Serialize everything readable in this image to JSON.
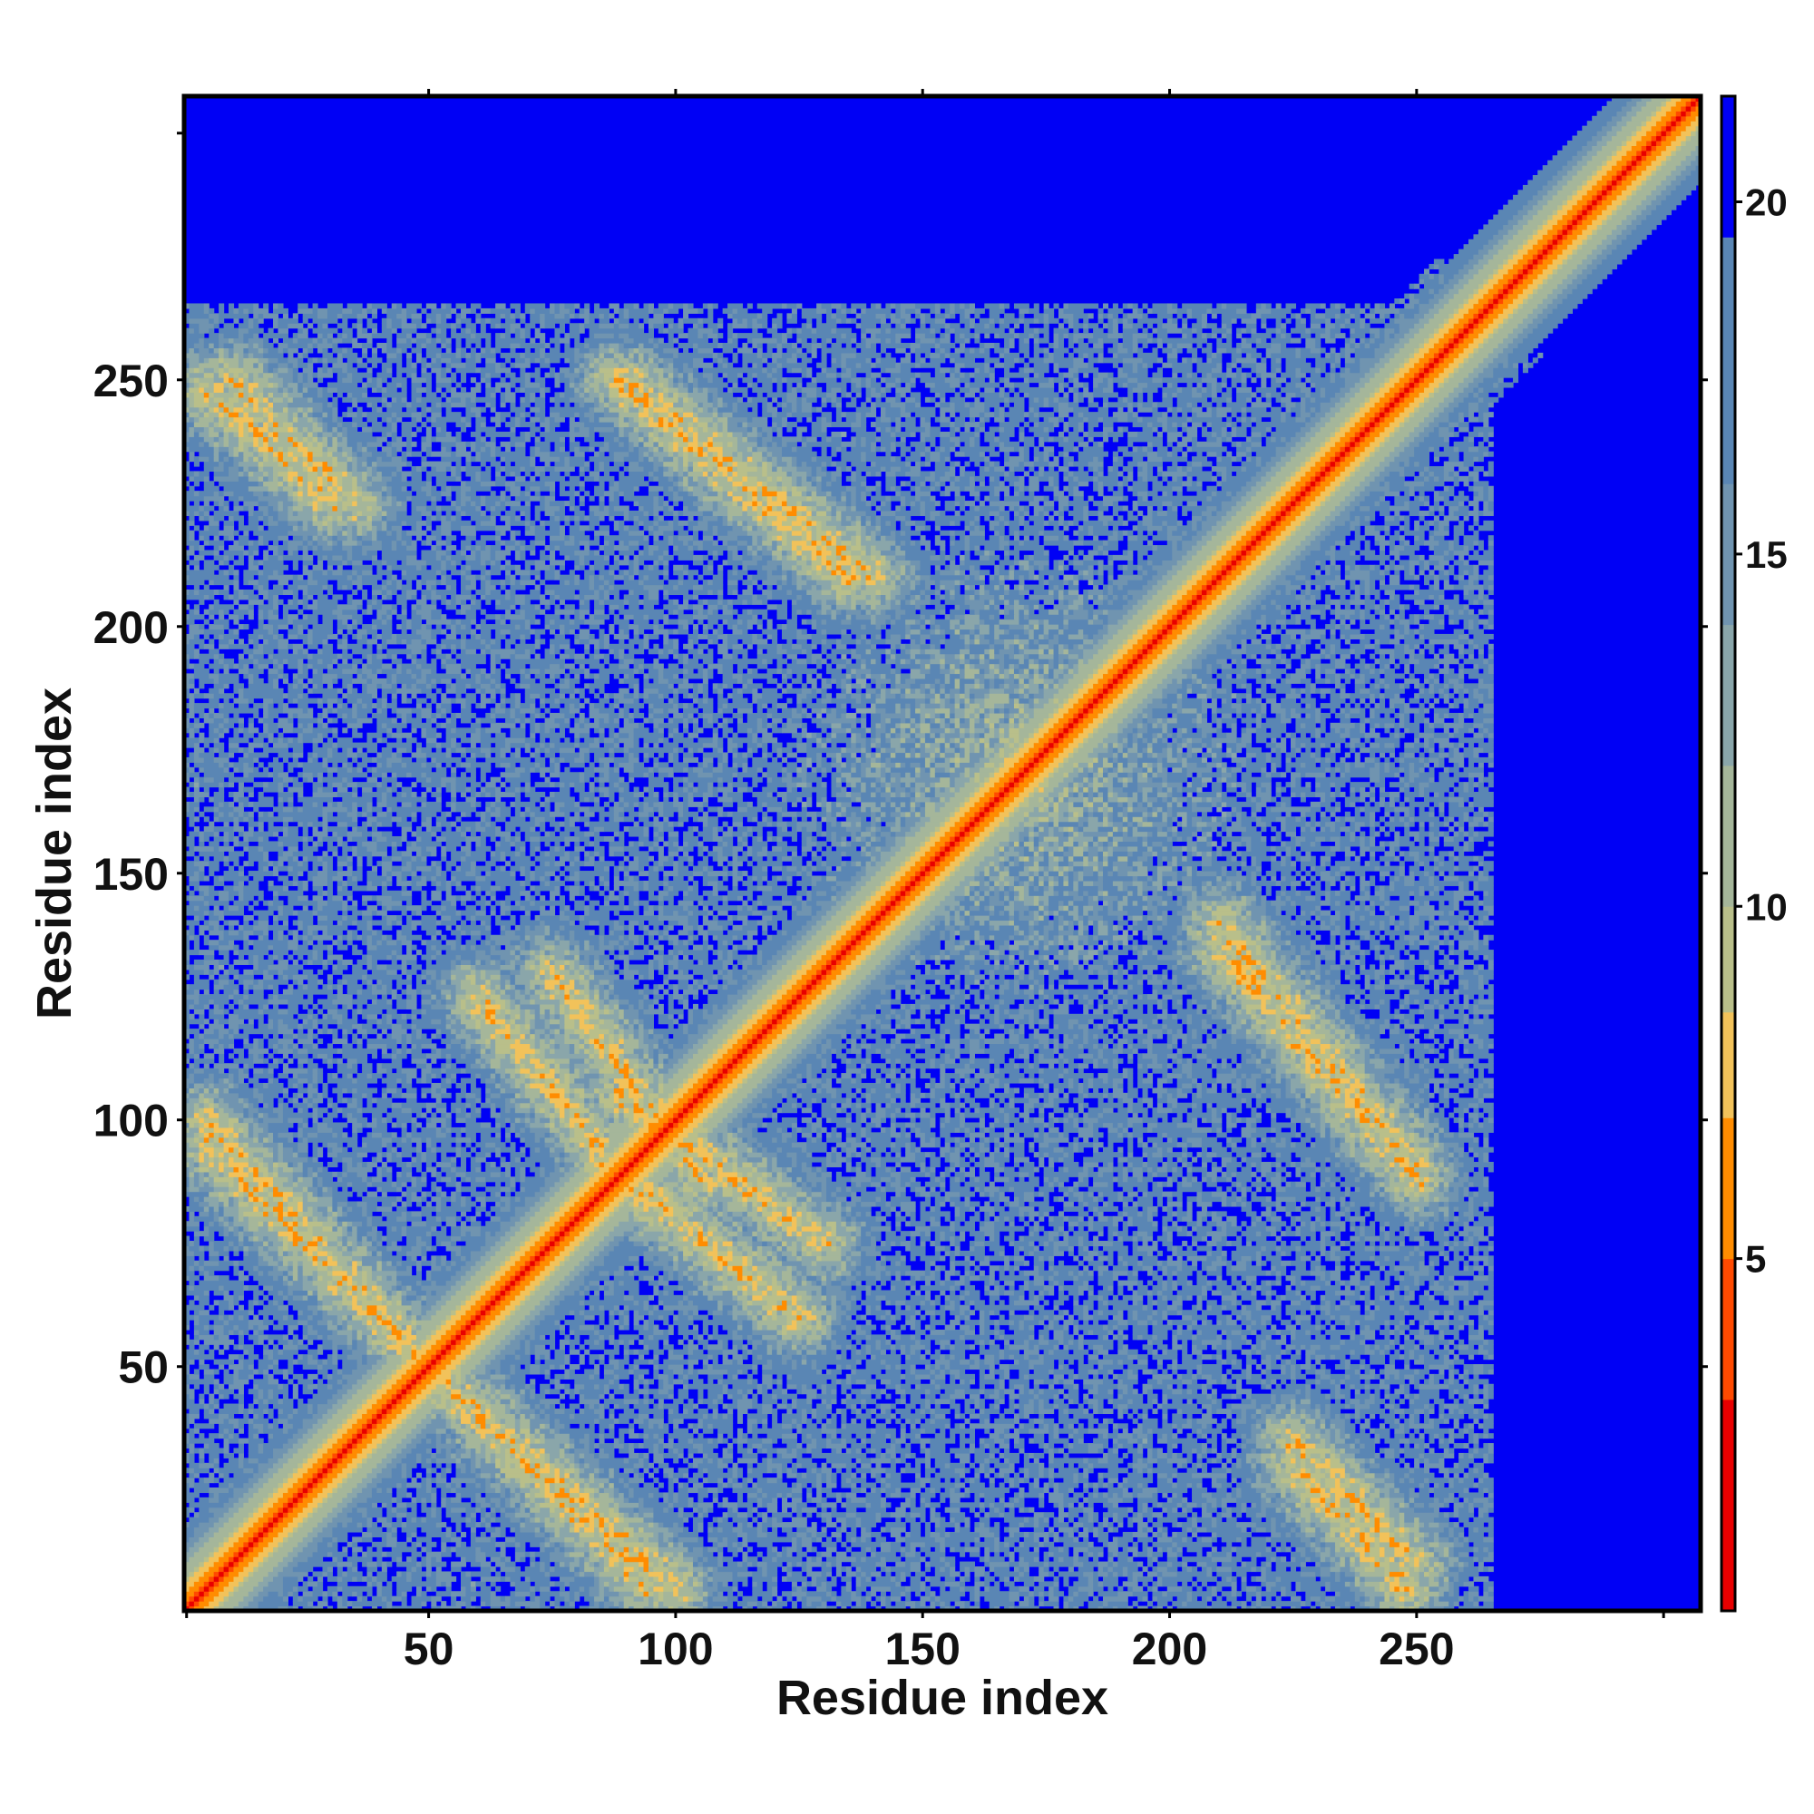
{
  "chart_data": {
    "type": "heatmap",
    "title": "",
    "xlabel": "Residue index",
    "ylabel": "Residue index",
    "x_range": [
      1,
      307
    ],
    "y_range": [
      1,
      307
    ],
    "xticks": [
      50,
      100,
      150,
      200,
      250
    ],
    "yticks": [
      50,
      100,
      150,
      200,
      250
    ],
    "xtick_labels": [
      "50",
      "100",
      "150",
      "200",
      "250"
    ],
    "ytick_labels": [
      "50",
      "100",
      "150",
      "200",
      "250"
    ],
    "colorbar": {
      "range": [
        0,
        21.5
      ],
      "ticks": [
        5,
        10,
        15,
        20
      ],
      "tick_labels": [
        "5",
        "10",
        "15",
        "20"
      ],
      "placement": "right"
    },
    "color_scale": [
      {
        "max": 3,
        "color": "#e80000"
      },
      {
        "max": 5,
        "color": "#ff4a00"
      },
      {
        "max": 7,
        "color": "#ff8c00"
      },
      {
        "max": 8.5,
        "color": "#f2c25a"
      },
      {
        "max": 10,
        "color": "#b9bf8a"
      },
      {
        "max": 12,
        "color": "#a5b69a"
      },
      {
        "max": 14,
        "color": "#8aa6aa"
      },
      {
        "max": 16,
        "color": "#7094b0"
      },
      {
        "max": 19.5,
        "color": "#5a86b4"
      },
      {
        "max": 99,
        "color": "#0000f5"
      }
    ],
    "matrix_kind": "symmetric residue-residue distance map",
    "features": {
      "diagonal": "continuous band of low distances along the full main diagonal",
      "anti_parallel_contacts": [
        {
          "x": [
            5,
            50
          ],
          "y": [
            95,
            50
          ]
        },
        {
          "x": [
            55,
            100
          ],
          "y": [
            45,
            5
          ]
        },
        {
          "x": [
            60,
            92
          ],
          "y": [
            125,
            85
          ]
        },
        {
          "x": [
            88,
            130
          ],
          "y": [
            105,
            75
          ]
        },
        {
          "x": [
            5,
            30
          ],
          "y": [
            248,
            225
          ]
        },
        {
          "x": [
            88,
            135
          ],
          "y": [
            250,
            210
          ]
        },
        {
          "x": [
            210,
            250
          ],
          "y": [
            140,
            90
          ]
        },
        {
          "x": [
            225,
            250
          ],
          "y": [
            35,
            10
          ]
        }
      ],
      "core_contact_region": {
        "x": [
          130,
          210
        ],
        "y": [
          130,
          210
        ]
      },
      "far_region_distance": "above 20"
    }
  }
}
